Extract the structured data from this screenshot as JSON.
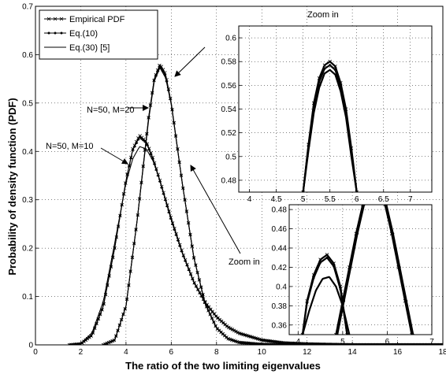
{
  "chart_data": [
    {
      "type": "line",
      "xlabel": "The ratio of the two limiting eigenvalues",
      "ylabel": "Probability of density function (PDF)",
      "xlim": [
        0,
        18
      ],
      "ylim": [
        0,
        0.7
      ],
      "xticks": [
        "0",
        "2",
        "4",
        "6",
        "8",
        "10",
        "12",
        "14",
        "16",
        "18"
      ],
      "yticks": [
        "0",
        "0.1",
        "0.2",
        "0.3",
        "0.4",
        "0.5",
        "0.6",
        "0.7"
      ],
      "grid": true,
      "legend": {
        "placement": "top-left",
        "entries": [
          "Empirical PDF",
          "Eq.(10)",
          "Eq.(30) [5]"
        ]
      },
      "annotations": [
        "N=50, M=20",
        "N=50, M=10",
        "Zoom in"
      ],
      "series": [
        {
          "name": "Empirical PDF",
          "curve": "N=50, M=20",
          "x": [
            3.0,
            3.5,
            4.0,
            4.5,
            5.0,
            5.25,
            5.5,
            5.75,
            6.0,
            6.5,
            7.0,
            7.5,
            8.0,
            8.5,
            9.0,
            10.0,
            11.0,
            12.0
          ],
          "y": [
            0.0,
            0.01,
            0.08,
            0.26,
            0.47,
            0.55,
            0.58,
            0.56,
            0.5,
            0.33,
            0.18,
            0.085,
            0.035,
            0.013,
            0.005,
            0.001,
            0.0,
            0.0
          ]
        },
        {
          "name": "Eq.(10)",
          "curve": "N=50, M=20",
          "x": [
            3.0,
            3.5,
            4.0,
            4.5,
            5.0,
            5.25,
            5.5,
            5.75,
            6.0,
            6.5,
            7.0,
            7.5,
            8.0,
            8.5,
            9.0,
            10.0,
            11.0,
            12.0
          ],
          "y": [
            0.0,
            0.01,
            0.08,
            0.26,
            0.47,
            0.55,
            0.577,
            0.556,
            0.5,
            0.33,
            0.18,
            0.085,
            0.035,
            0.013,
            0.005,
            0.001,
            0.0,
            0.0
          ]
        },
        {
          "name": "Eq.(30) [5]",
          "curve": "N=50, M=20",
          "x": [
            3.0,
            3.5,
            4.0,
            4.5,
            5.0,
            5.25,
            5.5,
            5.75,
            6.0,
            6.5,
            7.0,
            7.5,
            8.0,
            8.5,
            9.0,
            10.0,
            11.0,
            12.0
          ],
          "y": [
            0.0,
            0.01,
            0.08,
            0.26,
            0.465,
            0.545,
            0.573,
            0.552,
            0.497,
            0.33,
            0.18,
            0.085,
            0.035,
            0.013,
            0.005,
            0.001,
            0.0,
            0.0
          ]
        },
        {
          "name": "Empirical PDF",
          "curve": "N=50, M=10",
          "x": [
            1.5,
            2.0,
            2.5,
            3.0,
            3.5,
            4.0,
            4.3,
            4.6,
            4.9,
            5.2,
            5.5,
            6.0,
            6.5,
            7.0,
            7.5,
            8.0,
            8.5,
            9.0,
            10.0,
            11.0,
            12.0,
            14.0,
            16.0,
            18.0
          ],
          "y": [
            0.0,
            0.002,
            0.02,
            0.08,
            0.2,
            0.34,
            0.405,
            0.433,
            0.42,
            0.385,
            0.34,
            0.26,
            0.19,
            0.13,
            0.088,
            0.058,
            0.037,
            0.024,
            0.01,
            0.004,
            0.002,
            0.0,
            0.0,
            0.0
          ]
        },
        {
          "name": "Eq.(10)",
          "curve": "N=50, M=10",
          "x": [
            1.5,
            2.0,
            2.5,
            3.0,
            3.5,
            4.0,
            4.3,
            4.6,
            4.9,
            5.2,
            5.5,
            6.0,
            6.5,
            7.0,
            7.5,
            8.0,
            8.5,
            9.0,
            10.0,
            11.0,
            12.0,
            14.0,
            16.0,
            18.0
          ],
          "y": [
            0.0,
            0.002,
            0.02,
            0.08,
            0.2,
            0.34,
            0.403,
            0.43,
            0.418,
            0.383,
            0.338,
            0.258,
            0.188,
            0.129,
            0.087,
            0.058,
            0.037,
            0.024,
            0.01,
            0.004,
            0.002,
            0.0,
            0.0,
            0.0
          ]
        },
        {
          "name": "Eq.(30) [5]",
          "curve": "N=50, M=10",
          "x": [
            1.5,
            2.0,
            2.5,
            3.0,
            3.5,
            4.0,
            4.3,
            4.6,
            4.9,
            5.2,
            5.5,
            6.0,
            6.5,
            7.0,
            7.5,
            8.0,
            8.5,
            9.0,
            10.0,
            11.0,
            12.0,
            14.0,
            16.0,
            18.0
          ],
          "y": [
            0.0,
            0.003,
            0.025,
            0.09,
            0.21,
            0.335,
            0.385,
            0.41,
            0.405,
            0.38,
            0.34,
            0.262,
            0.19,
            0.13,
            0.087,
            0.058,
            0.037,
            0.024,
            0.01,
            0.004,
            0.002,
            0.0,
            0.0,
            0.0
          ]
        }
      ]
    },
    {
      "type": "line",
      "title": "Zoom in",
      "xlim": [
        3.8,
        7.4
      ],
      "ylim": [
        0.47,
        0.61
      ],
      "xticks": [
        "4",
        "4.5",
        "5",
        "5.5",
        "6",
        "6.5",
        "7"
      ],
      "yticks": [
        "0.48",
        "0.5",
        "0.52",
        "0.54",
        "0.56",
        "0.58",
        "0.6"
      ],
      "grid": true,
      "series": [
        {
          "name": "Empirical PDF",
          "x": [
            5.0,
            5.1,
            5.2,
            5.3,
            5.4,
            5.5,
            5.6,
            5.7,
            5.8,
            5.9,
            6.0
          ],
          "y": [
            0.47,
            0.51,
            0.545,
            0.566,
            0.577,
            0.58,
            0.576,
            0.562,
            0.54,
            0.507,
            0.47
          ]
        },
        {
          "name": "Eq.(10)",
          "x": [
            5.0,
            5.1,
            5.2,
            5.3,
            5.4,
            5.5,
            5.6,
            5.7,
            5.8,
            5.9,
            6.0
          ],
          "y": [
            0.47,
            0.509,
            0.542,
            0.563,
            0.574,
            0.577,
            0.573,
            0.559,
            0.537,
            0.504,
            0.47
          ]
        },
        {
          "name": "Eq.(30) [5]",
          "x": [
            5.0,
            5.1,
            5.2,
            5.3,
            5.4,
            5.5,
            5.6,
            5.7,
            5.8,
            5.9,
            6.0
          ],
          "y": [
            0.47,
            0.505,
            0.537,
            0.558,
            0.57,
            0.573,
            0.569,
            0.555,
            0.533,
            0.5,
            0.47
          ]
        }
      ]
    },
    {
      "type": "line",
      "title": "Zoom in",
      "xlim": [
        3.8,
        7.0
      ],
      "ylim": [
        0.35,
        0.485
      ],
      "xticks": [
        "4",
        "5",
        "6",
        "7"
      ],
      "yticks": [
        "0.36",
        "0.38",
        "0.4",
        "0.42",
        "0.44",
        "0.46",
        "0.48"
      ],
      "grid": true,
      "series": [
        {
          "name": "Empirical PDF",
          "curve": "N=50, M=10",
          "x": [
            4.1,
            4.2,
            4.35,
            4.5,
            4.65,
            4.8,
            4.95,
            5.1
          ],
          "y": [
            0.35,
            0.385,
            0.412,
            0.428,
            0.433,
            0.424,
            0.4,
            0.35
          ]
        },
        {
          "name": "Eq.(10)",
          "curve": "N=50, M=10",
          "x": [
            4.1,
            4.2,
            4.35,
            4.5,
            4.65,
            4.8,
            4.95,
            5.1
          ],
          "y": [
            0.35,
            0.383,
            0.409,
            0.425,
            0.43,
            0.421,
            0.397,
            0.35
          ]
        },
        {
          "name": "Eq.(30) [5]",
          "curve": "N=50, M=10",
          "x": [
            4.1,
            4.25,
            4.4,
            4.55,
            4.7,
            4.85,
            5.0,
            5.15
          ],
          "y": [
            0.35,
            0.375,
            0.396,
            0.408,
            0.41,
            0.4,
            0.38,
            0.35
          ]
        },
        {
          "name": "Empirical PDF",
          "curve": "N=50, M=20 (rising)",
          "x": [
            4.85,
            5.0,
            5.15,
            5.3,
            5.45
          ],
          "y": [
            0.35,
            0.385,
            0.42,
            0.455,
            0.485
          ]
        },
        {
          "name": "Eq.(10)",
          "curve": "N=50, M=20 (rising)",
          "x": [
            4.88,
            5.03,
            5.18,
            5.33,
            5.48
          ],
          "y": [
            0.35,
            0.385,
            0.42,
            0.455,
            0.485
          ]
        },
        {
          "name": "Empirical PDF",
          "curve": "N=50, M=20 (falling)",
          "x": [
            5.95,
            6.1,
            6.25,
            6.4,
            6.55
          ],
          "y": [
            0.485,
            0.455,
            0.42,
            0.385,
            0.35
          ]
        },
        {
          "name": "Eq.(10)",
          "curve": "N=50, M=20 (falling)",
          "x": [
            5.98,
            6.13,
            6.28,
            6.43,
            6.58
          ],
          "y": [
            0.485,
            0.455,
            0.42,
            0.385,
            0.35
          ]
        }
      ]
    }
  ]
}
